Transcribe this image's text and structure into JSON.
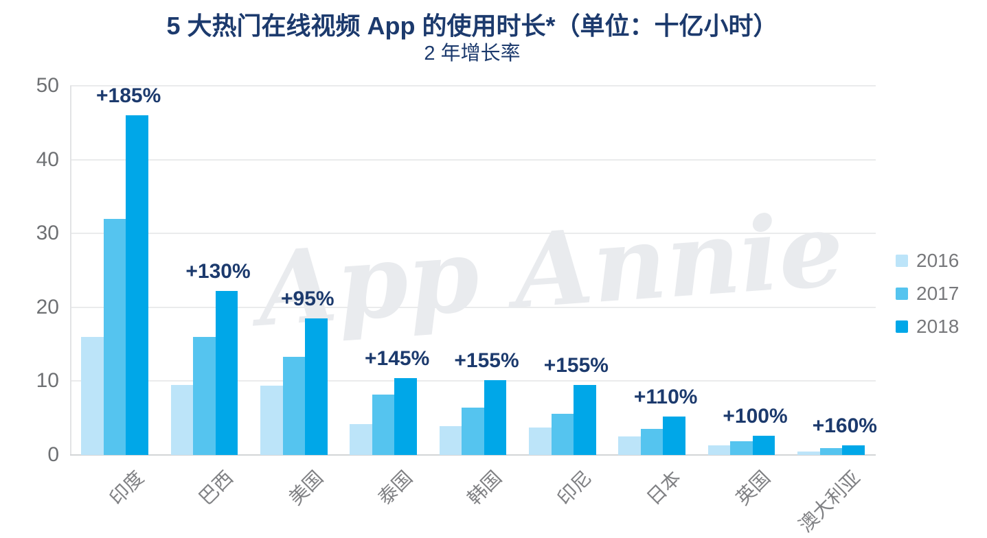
{
  "title": "5 大热门在线视频 App 的使用时长*（单位：十亿小时）",
  "subtitle": "2 年增长率",
  "watermark": "App Annie",
  "colors": {
    "title_navy": "#1c3a6d",
    "growth_label": "#1c3a6d",
    "axis_text": "#6e7073",
    "xlabel_text": "#808184",
    "legend_text": "#77787b",
    "grid_line": "#eaebec",
    "axis_line": "#d3d5d7",
    "watermark_gray": "#e9ebee",
    "series": {
      "2016": "#bce4f9",
      "2017": "#55c4ef",
      "2018": "#00a7e8"
    }
  },
  "y_axis": {
    "ticks": [
      0,
      10,
      20,
      30,
      40,
      50
    ],
    "max": 50
  },
  "legend": [
    {
      "label": "2016",
      "color": "#bce4f9"
    },
    {
      "label": "2017",
      "color": "#55c4ef"
    },
    {
      "label": "2018",
      "color": "#00a7e8"
    }
  ],
  "chart_data": {
    "type": "bar",
    "title": "5 大热门在线视频 App 的使用时长*（单位：十亿小时）",
    "subtitle": "2 年增长率",
    "categories": [
      "印度",
      "巴西",
      "美国",
      "泰国",
      "韩国",
      "印尼",
      "日本",
      "英国",
      "澳大利亚"
    ],
    "series": [
      {
        "name": "2016",
        "values": [
          16,
          9.5,
          9.4,
          4.2,
          3.9,
          3.7,
          2.5,
          1.3,
          0.5
        ]
      },
      {
        "name": "2017",
        "values": [
          32,
          16,
          13.3,
          8.2,
          6.4,
          5.6,
          3.5,
          1.9,
          0.9
        ]
      },
      {
        "name": "2018",
        "values": [
          46,
          22.2,
          18.5,
          10.4,
          10.1,
          9.5,
          5.2,
          2.6,
          1.3
        ]
      }
    ],
    "growth_labels": [
      "+185%",
      "+130%",
      "+95%",
      "+145%",
      "+155%",
      "+155%",
      "+110%",
      "+100%",
      "+160%"
    ],
    "ylabel": "",
    "xlabel": "",
    "ylim": [
      0,
      50
    ],
    "grid": "horizontal",
    "legend_position": "right",
    "watermark": "App Annie"
  }
}
